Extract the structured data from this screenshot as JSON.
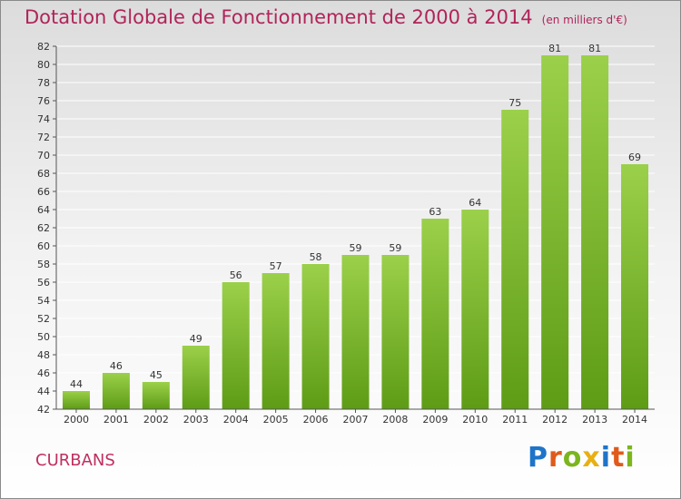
{
  "title": "Dotation Globale de Fonctionnement de 2000 à 2014",
  "subtitle": "(en milliers d'€)",
  "commune": "CURBANS",
  "logo": {
    "text": "Proxiti",
    "letters": [
      {
        "ch": "P",
        "color": "#1e74c8"
      },
      {
        "ch": "r",
        "color": "#e05a1a"
      },
      {
        "ch": "o",
        "color": "#7cb51e"
      },
      {
        "ch": "x",
        "color": "#e8b012"
      },
      {
        "ch": "i",
        "color": "#1e74c8"
      },
      {
        "ch": "t",
        "color": "#e05a1a"
      },
      {
        "ch": "i",
        "color": "#7cb51e"
      }
    ]
  },
  "colors": {
    "title": "#b0245a",
    "bar_light": "#9bd04a",
    "bar_dark": "#5e9c16",
    "grid": "#ffffff",
    "axis": "#555555"
  },
  "chart_data": {
    "type": "bar",
    "title": "Dotation Globale de Fonctionnement de 2000 à 2014",
    "subtitle": "(en milliers d'€)",
    "categories": [
      "2000",
      "2001",
      "2002",
      "2003",
      "2004",
      "2005",
      "2006",
      "2007",
      "2008",
      "2009",
      "2010",
      "2011",
      "2012",
      "2013",
      "2014"
    ],
    "values": [
      44,
      46,
      45,
      49,
      56,
      57,
      58,
      59,
      59,
      63,
      64,
      75,
      81,
      81,
      69
    ],
    "ylim": [
      42,
      82
    ],
    "yticks": [
      42,
      44,
      46,
      48,
      50,
      52,
      54,
      56,
      58,
      60,
      62,
      64,
      66,
      68,
      70,
      72,
      74,
      76,
      78,
      80,
      82
    ],
    "grid": true,
    "legend": "none"
  }
}
